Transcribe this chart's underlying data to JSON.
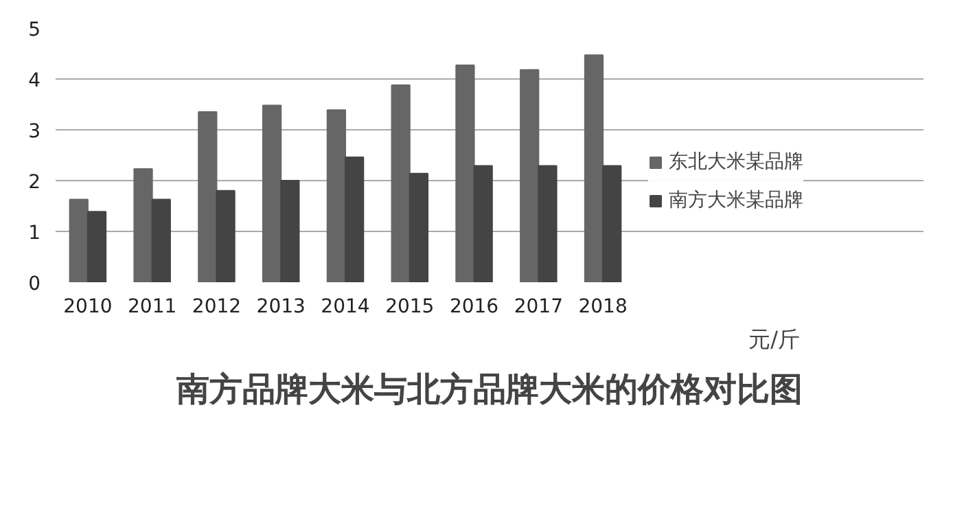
{
  "chart_data": {
    "type": "bar",
    "title": "南方品牌大米与北方品牌大米的价格对比图",
    "annotations": [
      "元/斤"
    ],
    "categories": [
      "2010",
      "2011",
      "2012",
      "2013",
      "2014",
      "2015",
      "2016",
      "2017",
      "2018"
    ],
    "series": [
      {
        "name": "东北大米某品牌",
        "color": "#666666",
        "values": [
          1.63,
          2.23,
          3.35,
          3.48,
          3.39,
          3.88,
          4.27,
          4.18,
          4.47
        ]
      },
      {
        "name": "南方大米某品牌",
        "color": "#444444",
        "values": [
          1.39,
          1.63,
          1.8,
          2.0,
          2.46,
          2.14,
          2.29,
          2.29,
          2.29
        ]
      }
    ],
    "ylim": [
      0,
      5
    ],
    "yticks": [
      0,
      1,
      2,
      3,
      4,
      5
    ],
    "grid": "y",
    "legend": "right"
  }
}
